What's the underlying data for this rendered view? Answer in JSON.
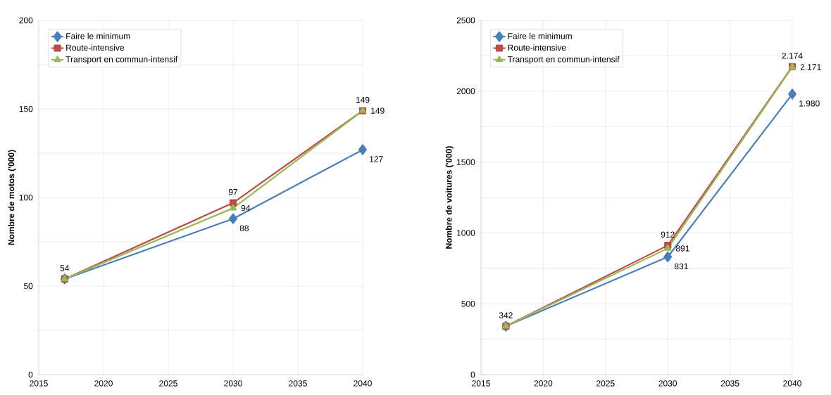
{
  "chart_data": [
    {
      "type": "line",
      "x": [
        2017,
        2030,
        2040
      ],
      "ylabel": "Nombre de motos ('000)",
      "xlim": [
        2015,
        2040
      ],
      "xticks": [
        2015,
        2020,
        2025,
        2030,
        2035,
        2040
      ],
      "ylim": [
        0,
        200
      ],
      "yticks": [
        0,
        {
          "value": 25,
          "label": null
        },
        50,
        {
          "value": 75,
          "label": null
        },
        100,
        {
          "value": 125,
          "label": null
        },
        150,
        {
          "value": 175,
          "label": null
        },
        200
      ],
      "grid": true,
      "legend": "top left",
      "series": [
        {
          "name": "Faire le minimum",
          "color": "#4a7ebb",
          "marker": "diamond",
          "values": [
            54,
            88,
            127
          ],
          "value_labels": [
            null,
            "88",
            "127"
          ]
        },
        {
          "name": "Route-intensive",
          "color": "#be4b48",
          "marker": "square",
          "values": [
            54,
            97,
            149
          ],
          "value_labels": [
            "54",
            "97",
            "149"
          ]
        },
        {
          "name": "Transport  en commun-intensif",
          "color": "#98b954",
          "marker": "triangle",
          "values": [
            54,
            94,
            149
          ],
          "value_labels": [
            null,
            "94",
            "149"
          ]
        }
      ]
    },
    {
      "type": "line",
      "x": [
        2017,
        2030,
        2040
      ],
      "ylabel": "Nombre de voitures ('000)",
      "xlim": [
        2015,
        2040
      ],
      "xticks": [
        2015,
        2020,
        2025,
        2030,
        2035,
        2040
      ],
      "ylim": [
        0,
        2500
      ],
      "yticks": [
        0,
        {
          "value": 250,
          "label": null
        },
        500,
        {
          "value": 750,
          "label": null
        },
        1000,
        {
          "value": 1250,
          "label": null
        },
        1500,
        {
          "value": 1750,
          "label": null
        },
        2000,
        {
          "value": 2250,
          "label": null
        },
        2500
      ],
      "grid": true,
      "legend": "top left",
      "series": [
        {
          "name": "Faire le minimum",
          "color": "#4a7ebb",
          "marker": "diamond",
          "values": [
            342,
            831,
            1980
          ],
          "value_labels": [
            null,
            "831",
            "1.980"
          ]
        },
        {
          "name": "Route-intensive",
          "color": "#be4b48",
          "marker": "square",
          "values": [
            342,
            912,
            2174
          ],
          "value_labels": [
            "342",
            "912",
            "2.174"
          ]
        },
        {
          "name": "Transport  en commun-intensif",
          "color": "#98b954",
          "marker": "triangle",
          "values": [
            342,
            891,
            2171
          ],
          "value_labels": [
            null,
            "891",
            "2.171"
          ]
        }
      ]
    }
  ]
}
